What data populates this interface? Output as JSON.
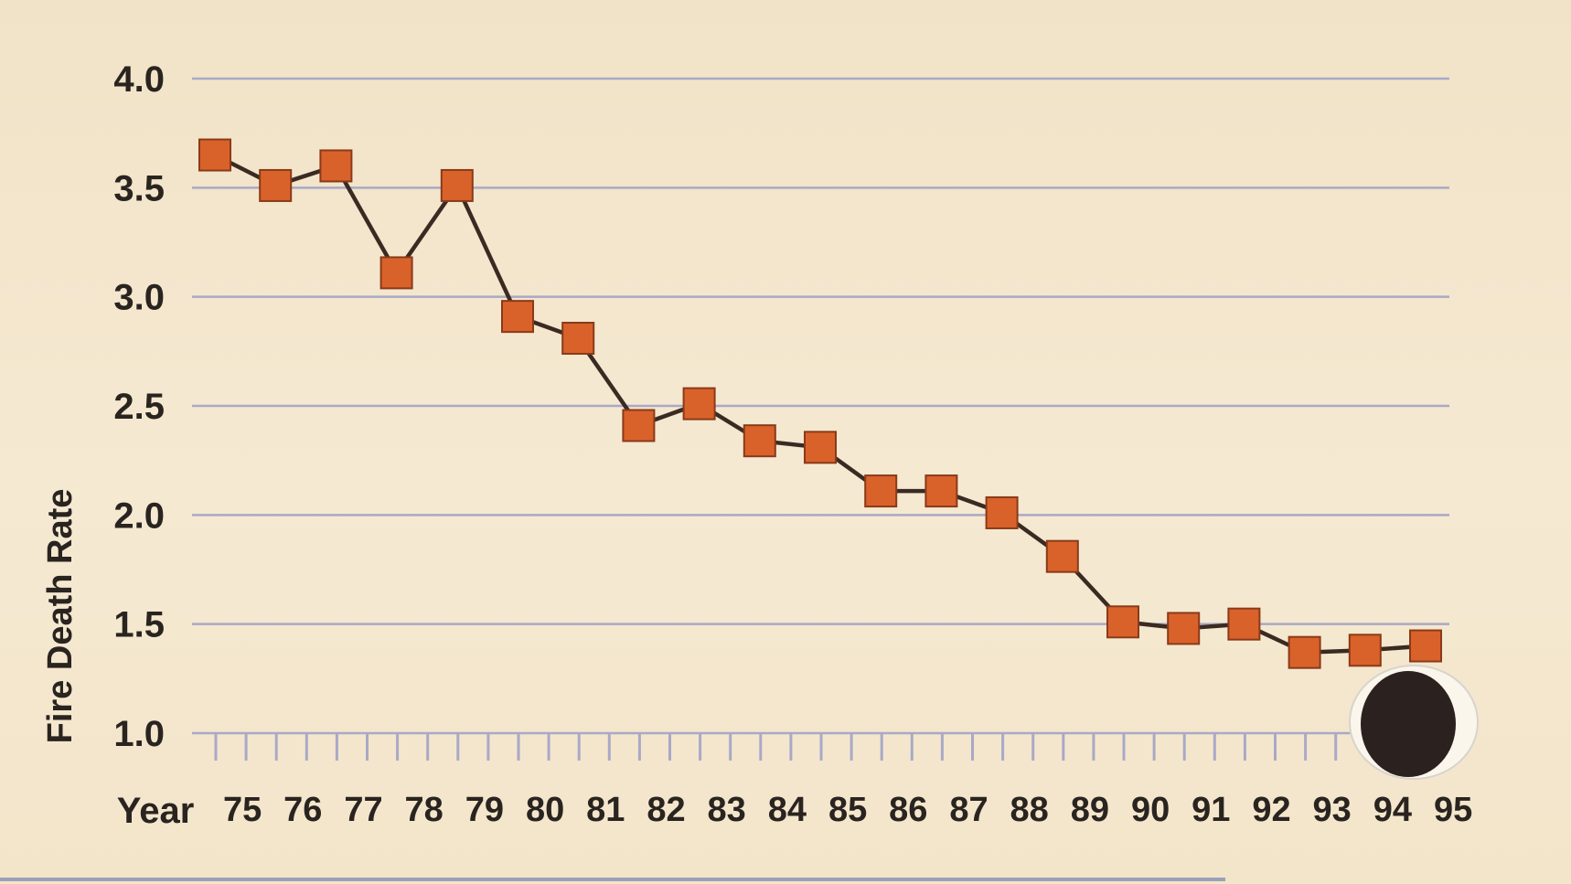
{
  "chart_data": {
    "type": "line",
    "ylabel": "Fire Death Rate",
    "xlabel": "Year",
    "ylim": [
      1.0,
      4.0
    ],
    "yticks": [
      "1.0",
      "1.5",
      "2.0",
      "2.5",
      "3.0",
      "3.5",
      "4.0"
    ],
    "xticks": [
      "75",
      "76",
      "77",
      "78",
      "79",
      "80",
      "81",
      "82",
      "83",
      "84",
      "85",
      "86",
      "87",
      "88",
      "89",
      "90",
      "91",
      "92",
      "93",
      "94",
      "95"
    ],
    "grid": true,
    "x": [
      75,
      76,
      77,
      78,
      79,
      80,
      81,
      82,
      83,
      84,
      85,
      86,
      87,
      88,
      89,
      90,
      91,
      92,
      93,
      94,
      95
    ],
    "series": [
      {
        "values": [
          3.65,
          3.51,
          3.6,
          3.11,
          3.51,
          2.91,
          2.81,
          2.41,
          2.51,
          2.34,
          2.31,
          2.11,
          2.11,
          2.01,
          1.81,
          1.51,
          1.48,
          1.5,
          1.37,
          1.38,
          1.4
        ]
      }
    ],
    "colors": {
      "background": "#f3e6cc",
      "gridline": "#a9a9c6",
      "line": "#3a2a22",
      "marker": "#d9622b",
      "text": "#2a2420"
    }
  }
}
